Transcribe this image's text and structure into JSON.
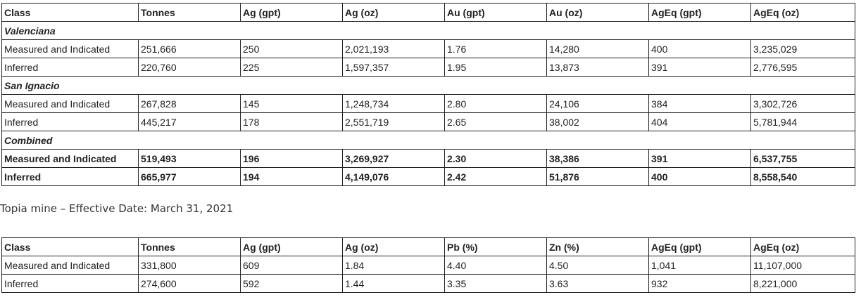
{
  "table1": {
    "headers": [
      "Class",
      "Tonnes",
      "Ag (gpt)",
      "Ag (oz)",
      "Au (gpt)",
      "Au (oz)",
      "AgEq (gpt)",
      "AgEq (oz)"
    ],
    "groups": [
      {
        "name": "Valenciana",
        "rows": [
          [
            "Measured and Indicated",
            "251,666",
            "250",
            "2,021,193",
            "1.76",
            "14,280",
            "400",
            "3,235,029"
          ],
          [
            "Inferred",
            "220,760",
            "225",
            "1,597,357",
            "1.95",
            "13,873",
            "391",
            "2,776,595"
          ]
        ]
      },
      {
        "name": "San Ignacio",
        "rows": [
          [
            "Measured and Indicated",
            "267,828",
            "145",
            "1,248,734",
            "2.80",
            "24,106",
            "384",
            "3,302,726"
          ],
          [
            "Inferred",
            "445,217",
            "178",
            "2,551,719",
            "2.65",
            "38,002",
            "404",
            "5,781,944"
          ]
        ]
      },
      {
        "name": "Combined",
        "rows": [
          [
            "Measured and Indicated",
            "519,493",
            "196",
            "3,269,927",
            "2.30",
            "38,386",
            "391",
            "6,537,755"
          ],
          [
            "Inferred",
            "665,977",
            "194",
            "4,149,076",
            "2.42",
            "51,876",
            "400",
            "8,558,540"
          ]
        ]
      }
    ]
  },
  "caption": "Topia mine – Effective Date: March 31, 2021",
  "table2": {
    "headers": [
      "Class",
      "Tonnes",
      "Ag (gpt)",
      "Ag (oz)",
      "Pb (%)",
      "Zn (%)",
      "AgEq (gpt)",
      "AgEq (oz)"
    ],
    "rows": [
      [
        "Measured and Indicated",
        "331,800",
        "609",
        "1.84",
        "4.40",
        "4.50",
        "1,041",
        "11,107,000"
      ],
      [
        "Inferred",
        "274,600",
        "592",
        "1.44",
        "3.35",
        "3.63",
        "932",
        "8,221,000"
      ]
    ]
  }
}
